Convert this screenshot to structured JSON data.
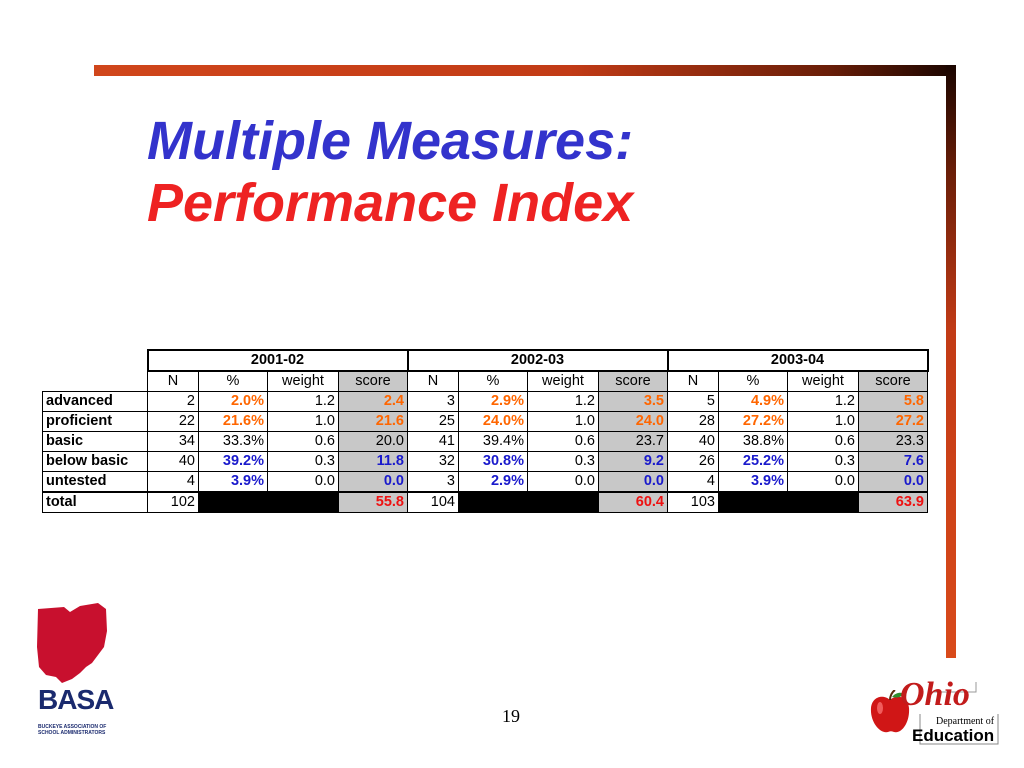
{
  "title": {
    "line1": "Multiple Measures:",
    "line2": "Performance Index"
  },
  "table": {
    "years": [
      "2001-02",
      "2002-03",
      "2003-04"
    ],
    "subheaders": [
      "N",
      "%",
      "weight",
      "score"
    ],
    "rows": [
      {
        "label": "advanced",
        "cells": [
          {
            "n": "2",
            "pct": "2.0%",
            "w": "1.2",
            "s": "2.4"
          },
          {
            "n": "3",
            "pct": "2.9%",
            "w": "1.2",
            "s": "3.5"
          },
          {
            "n": "5",
            "pct": "4.9%",
            "w": "1.2",
            "s": "5.8"
          }
        ]
      },
      {
        "label": "proficient",
        "cells": [
          {
            "n": "22",
            "pct": "21.6%",
            "w": "1.0",
            "s": "21.6"
          },
          {
            "n": "25",
            "pct": "24.0%",
            "w": "1.0",
            "s": "24.0"
          },
          {
            "n": "28",
            "pct": "27.2%",
            "w": "1.0",
            "s": "27.2"
          }
        ]
      },
      {
        "label": "basic",
        "cells": [
          {
            "n": "34",
            "pct": "33.3%",
            "w": "0.6",
            "s": "20.0"
          },
          {
            "n": "41",
            "pct": "39.4%",
            "w": "0.6",
            "s": "23.7"
          },
          {
            "n": "40",
            "pct": "38.8%",
            "w": "0.6",
            "s": "23.3"
          }
        ]
      },
      {
        "label": "below basic",
        "cells": [
          {
            "n": "40",
            "pct": "39.2%",
            "w": "0.3",
            "s": "11.8"
          },
          {
            "n": "32",
            "pct": "30.8%",
            "w": "0.3",
            "s": "9.2"
          },
          {
            "n": "26",
            "pct": "25.2%",
            "w": "0.3",
            "s": "7.6"
          }
        ]
      },
      {
        "label": "untested",
        "cells": [
          {
            "n": "4",
            "pct": "3.9%",
            "w": "0.0",
            "s": "0.0"
          },
          {
            "n": "3",
            "pct": "2.9%",
            "w": "0.0",
            "s": "0.0"
          },
          {
            "n": "4",
            "pct": "3.9%",
            "w": "0.0",
            "s": "0.0"
          }
        ]
      }
    ],
    "total": {
      "label": "total",
      "cells": [
        {
          "n": "102",
          "s": "55.8"
        },
        {
          "n": "104",
          "s": "60.4"
        },
        {
          "n": "103",
          "s": "63.9"
        }
      ]
    }
  },
  "page_number": "19",
  "logos": {
    "left": {
      "name": "BASA",
      "subtitle": "BUCKEYE ASSOCIATION OF SCHOOL ADMINISTRATORS"
    },
    "right": {
      "script": "Ohio",
      "dept": "Department of",
      "org": "Education"
    }
  },
  "colors": {
    "title_blue": "#3333cc",
    "title_red": "#ee2222",
    "orange_values": "#ff6600",
    "blue_values": "#1a1acc",
    "red_totals": "#ee1111",
    "score_fill": "#c8c8c8"
  }
}
